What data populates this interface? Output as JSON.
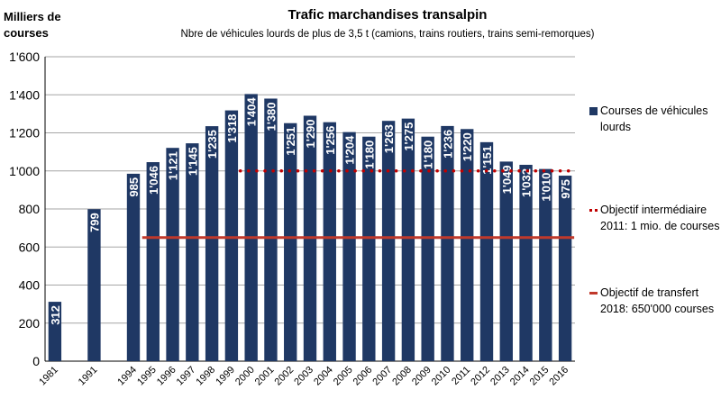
{
  "chart_data": {
    "type": "bar",
    "title": "Trafic marchandises transalpin",
    "subtitle": "Nbre de véhicules lourds de plus de 3,5 t (camions, trains routiers, trains semi-remorques)",
    "ylabel": "Milliers de courses",
    "xlabel": "",
    "ylim": [
      0,
      1600
    ],
    "yticks": [
      0,
      200,
      400,
      600,
      800,
      1000,
      1200,
      1400,
      1600
    ],
    "ytick_labels": [
      "0",
      "200",
      "400",
      "600",
      "800",
      "1'000",
      "1'200",
      "1'400",
      "1'600"
    ],
    "grid": true,
    "legend_position": "right",
    "categories": [
      "1981",
      "",
      "1991",
      "",
      "1994",
      "1995",
      "1996",
      "1997",
      "1998",
      "1999",
      "2000",
      "2001",
      "2002",
      "2003",
      "2004",
      "2005",
      "2006",
      "2007",
      "2008",
      "2009",
      "2010",
      "2011",
      "2012",
      "2013",
      "2014",
      "2015",
      "2016"
    ],
    "series": [
      {
        "name": "Courses de véhicules lourds",
        "color": "#1f3864",
        "values": [
          312,
          null,
          799,
          null,
          985,
          1046,
          1121,
          1145,
          1235,
          1318,
          1404,
          1380,
          1251,
          1290,
          1256,
          1204,
          1180,
          1263,
          1275,
          1180,
          1236,
          1220,
          1151,
          1049,
          1032,
          1010,
          975
        ],
        "labels": [
          "312",
          "",
          "799",
          "",
          "985",
          "1'046",
          "1'121",
          "1'145",
          "1'235",
          "1'318",
          "1'404",
          "1'380",
          "1'251",
          "1'290",
          "1'256",
          "1'204",
          "1'180",
          "1'263",
          "1'275",
          "1'180",
          "1'236",
          "1'220",
          "1'151",
          "1'049",
          "1'032",
          "1'010",
          "975"
        ]
      }
    ],
    "reference_lines": [
      {
        "name": "Objectif intermédiaire 2011: 1 mio. de courses",
        "value": 1000,
        "from": "2000",
        "to": "2016",
        "style": "dotted",
        "color": "#c00000"
      },
      {
        "name": "Objectif de transfert 2018: 650'000 courses",
        "value": 650,
        "from": "1995",
        "to": "2016",
        "style": "solid",
        "color": "#c0392b"
      }
    ]
  },
  "legend": {
    "bars": "Courses de véhicules lourds",
    "intermediate": "Objectif intermédiaire 2011: 1 mio. de courses",
    "transfer": "Objectif de transfert 2018: 650'000 courses"
  }
}
